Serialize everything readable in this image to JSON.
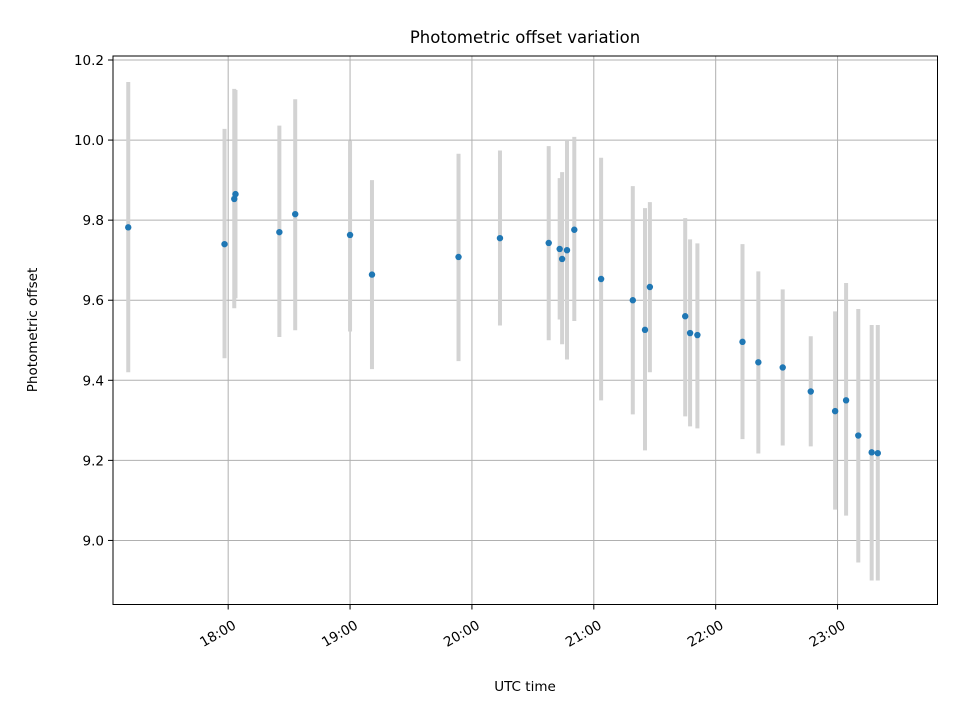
{
  "chart_data": {
    "type": "scatter",
    "title": "Photometric offset variation",
    "xlabel": "UTC time",
    "ylabel": "Photometric offset",
    "grid": true,
    "x_unit": "hours UTC",
    "xlim": [
      17.055,
      23.82
    ],
    "ylim": [
      8.84,
      10.21
    ],
    "xticks": [
      {
        "value": 18,
        "label": "18:00"
      },
      {
        "value": 19,
        "label": "19:00"
      },
      {
        "value": 20,
        "label": "20:00"
      },
      {
        "value": 21,
        "label": "21:00"
      },
      {
        "value": 22,
        "label": "22:00"
      },
      {
        "value": 23,
        "label": "23:00"
      }
    ],
    "yticks": [
      {
        "value": 9.0,
        "label": "9.0"
      },
      {
        "value": 9.2,
        "label": "9.2"
      },
      {
        "value": 9.4,
        "label": "9.4"
      },
      {
        "value": 9.6,
        "label": "9.6"
      },
      {
        "value": 9.8,
        "label": "9.8"
      },
      {
        "value": 10.0,
        "label": "10.0"
      },
      {
        "value": 10.2,
        "label": "10.2"
      }
    ],
    "marker_color": "#1f77b4",
    "errorbar_color": "#d3d3d3",
    "series": [
      {
        "name": "offset",
        "points": [
          {
            "x": 17.18,
            "y": 9.782,
            "ylo": 9.42,
            "yhi": 10.145
          },
          {
            "x": 17.97,
            "y": 9.74,
            "ylo": 9.455,
            "yhi": 10.028
          },
          {
            "x": 18.05,
            "y": 9.853,
            "ylo": 9.58,
            "yhi": 10.128
          },
          {
            "x": 18.06,
            "y": 9.865,
            "ylo": 9.605,
            "yhi": 10.125
          },
          {
            "x": 18.42,
            "y": 9.77,
            "ylo": 9.508,
            "yhi": 10.036
          },
          {
            "x": 18.55,
            "y": 9.815,
            "ylo": 9.525,
            "yhi": 10.102
          },
          {
            "x": 19.0,
            "y": 9.763,
            "ylo": 9.522,
            "yhi": 9.998
          },
          {
            "x": 19.18,
            "y": 9.664,
            "ylo": 9.428,
            "yhi": 9.9
          },
          {
            "x": 19.89,
            "y": 9.708,
            "ylo": 9.448,
            "yhi": 9.966
          },
          {
            "x": 20.23,
            "y": 9.755,
            "ylo": 9.537,
            "yhi": 9.974
          },
          {
            "x": 20.63,
            "y": 9.743,
            "ylo": 9.5,
            "yhi": 9.985
          },
          {
            "x": 20.72,
            "y": 9.728,
            "ylo": 9.552,
            "yhi": 9.905
          },
          {
            "x": 20.74,
            "y": 9.703,
            "ylo": 9.49,
            "yhi": 9.92
          },
          {
            "x": 20.78,
            "y": 9.725,
            "ylo": 9.452,
            "yhi": 10.0
          },
          {
            "x": 20.84,
            "y": 9.776,
            "ylo": 9.548,
            "yhi": 10.008
          },
          {
            "x": 21.06,
            "y": 9.653,
            "ylo": 9.35,
            "yhi": 9.956
          },
          {
            "x": 21.32,
            "y": 9.6,
            "ylo": 9.315,
            "yhi": 9.885
          },
          {
            "x": 21.42,
            "y": 9.526,
            "ylo": 9.225,
            "yhi": 9.83
          },
          {
            "x": 21.46,
            "y": 9.633,
            "ylo": 9.42,
            "yhi": 9.845
          },
          {
            "x": 21.75,
            "y": 9.56,
            "ylo": 9.31,
            "yhi": 9.805
          },
          {
            "x": 21.79,
            "y": 9.518,
            "ylo": 9.285,
            "yhi": 9.752
          },
          {
            "x": 21.85,
            "y": 9.513,
            "ylo": 9.28,
            "yhi": 9.742
          },
          {
            "x": 22.22,
            "y": 9.496,
            "ylo": 9.253,
            "yhi": 9.74
          },
          {
            "x": 22.35,
            "y": 9.445,
            "ylo": 9.217,
            "yhi": 9.672
          },
          {
            "x": 22.55,
            "y": 9.432,
            "ylo": 9.237,
            "yhi": 9.627
          },
          {
            "x": 22.78,
            "y": 9.372,
            "ylo": 9.235,
            "yhi": 9.51
          },
          {
            "x": 22.98,
            "y": 9.323,
            "ylo": 9.077,
            "yhi": 9.572
          },
          {
            "x": 23.07,
            "y": 9.35,
            "ylo": 9.062,
            "yhi": 9.643
          },
          {
            "x": 23.17,
            "y": 9.262,
            "ylo": 8.945,
            "yhi": 9.578
          },
          {
            "x": 23.28,
            "y": 9.22,
            "ylo": 8.9,
            "yhi": 9.538
          },
          {
            "x": 23.33,
            "y": 9.218,
            "ylo": 8.9,
            "yhi": 9.538
          }
        ]
      }
    ]
  }
}
